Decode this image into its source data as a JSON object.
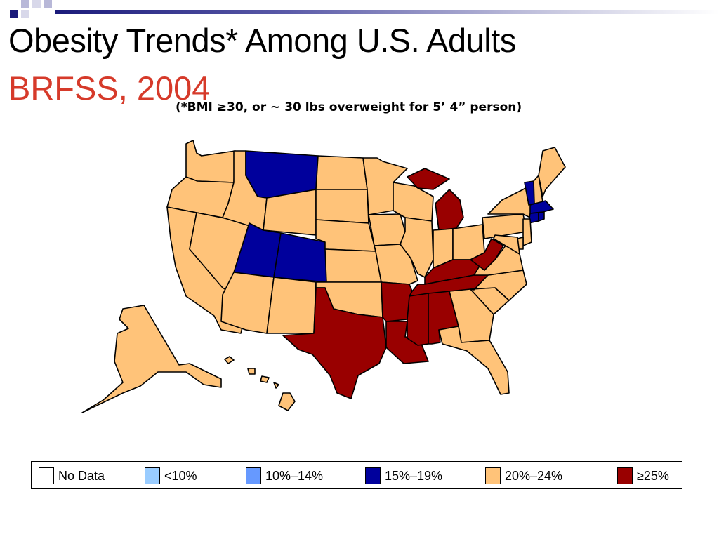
{
  "title": "Obesity Trends* Among U.S. Adults",
  "subtitle": "BRFSS, 2004",
  "footnote": "(*BMI ≥30, or ~ 30 lbs overweight for 5’ 4” person)",
  "colors": {
    "title_accent": "#d63a2a",
    "no_data": "#ffffff",
    "lt10": "#99ccff",
    "10_14": "#6699ff",
    "15_19": "#00009c",
    "20_24": "#ffc379",
    "ge25": "#990000"
  },
  "legend": [
    {
      "label": "No Data",
      "color": "#ffffff"
    },
    {
      "label": "<10%",
      "color": "#99ccff"
    },
    {
      "label": "10%–14%",
      "color": "#6699ff"
    },
    {
      "label": "15%–19%",
      "color": "#00009c"
    },
    {
      "label": "20%–24%",
      "color": "#ffc379"
    },
    {
      "label": "≥25%",
      "color": "#990000"
    }
  ],
  "state_categories": {
    "15%–19%": [
      "Montana",
      "Utah",
      "Colorado",
      "Vermont",
      "Massachusetts",
      "Connecticut",
      "Rhode Island"
    ],
    "≥25%": [
      "Texas",
      "Louisiana",
      "Arkansas",
      "Mississippi",
      "Alabama",
      "Tennessee",
      "Kentucky",
      "West Virginia",
      "Michigan"
    ],
    "20%–24%": [
      "Washington",
      "Oregon",
      "California",
      "Nevada",
      "Idaho",
      "Wyoming",
      "Arizona",
      "New Mexico",
      "North Dakota",
      "South Dakota",
      "Nebraska",
      "Kansas",
      "Oklahoma",
      "Minnesota",
      "Iowa",
      "Missouri",
      "Wisconsin",
      "Illinois",
      "Indiana",
      "Ohio",
      "Pennsylvania",
      "New York",
      "New Jersey",
      "Delaware",
      "Maryland",
      "Virginia",
      "North Carolina",
      "South Carolina",
      "Georgia",
      "Florida",
      "Maine",
      "New Hampshire",
      "Alaska",
      "Hawaii"
    ]
  }
}
